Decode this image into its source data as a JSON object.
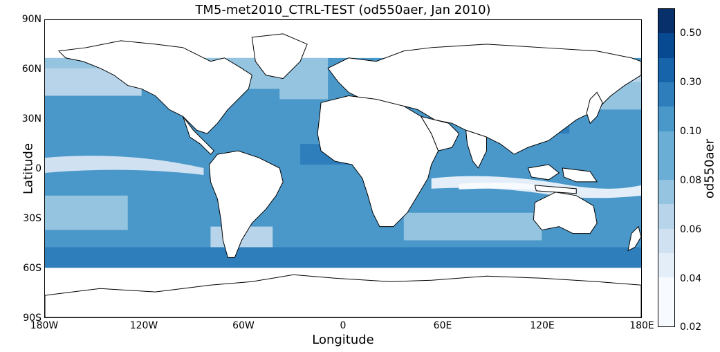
{
  "title": "TM5-met2010_CTRL-TEST (od550aer, Jan 2010)",
  "xlabel": "Longitude",
  "ylabel": "Latitude",
  "x_ticks": [
    "180W",
    "120W",
    "60W",
    "0",
    "60E",
    "120E",
    "180E"
  ],
  "y_ticks": [
    "90N",
    "60N",
    "30N",
    "0",
    "30S",
    "60S",
    "90S"
  ],
  "colorbar": {
    "label": "od550aer",
    "tick_labels": [
      "0.02",
      "0.04",
      "0.06",
      "0.08",
      "0.10",
      "0.30",
      "0.50"
    ],
    "colors": [
      "#f7fbff",
      "#e3eef9",
      "#d0e1f2",
      "#b7d4ea",
      "#94c4df",
      "#6aaed6",
      "#4a98c9",
      "#2e7ebc",
      "#1764ab",
      "#084a91",
      "#08306b"
    ]
  },
  "colors": {
    "land": "#ffffff",
    "coastline": "#000000"
  }
}
